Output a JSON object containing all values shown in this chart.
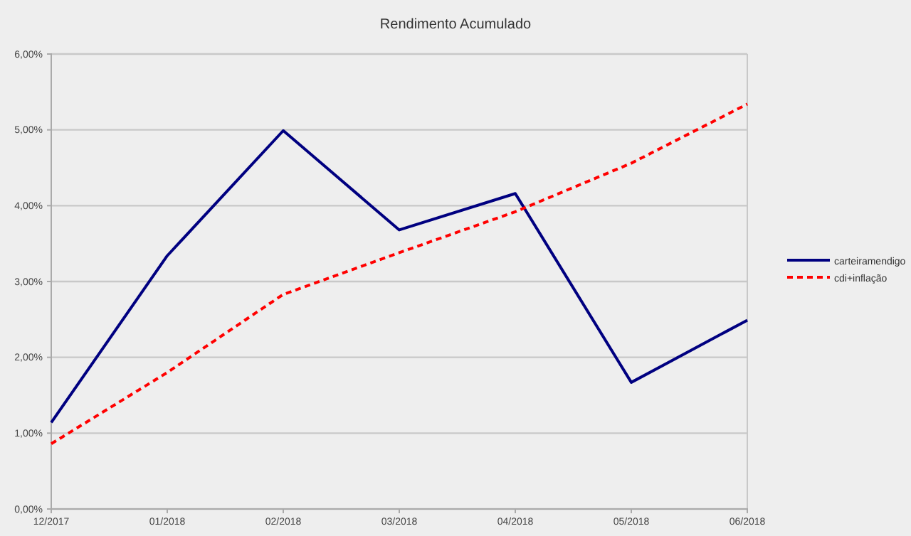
{
  "chart_data": {
    "type": "line",
    "title": "Rendimento Acumulado",
    "categories": [
      "12/2017",
      "01/2018",
      "02/2018",
      "03/2018",
      "04/2018",
      "05/2018",
      "06/2018"
    ],
    "series": [
      {
        "name": "carteiramendigo",
        "color": "#000080",
        "line_style": "solid",
        "values": [
          1.14,
          3.34,
          4.99,
          3.68,
          4.16,
          1.67,
          2.49
        ]
      },
      {
        "name": "cdi+inflação",
        "color": "#ff0000",
        "line_style": "dashed",
        "values": [
          0.86,
          1.8,
          2.83,
          3.38,
          3.92,
          4.56,
          5.34
        ]
      }
    ],
    "ylim": [
      0,
      6
    ],
    "yticks": [
      {
        "value": 0,
        "label": "0,00%"
      },
      {
        "value": 1,
        "label": "1,00%"
      },
      {
        "value": 2,
        "label": "2,00%"
      },
      {
        "value": 3,
        "label": "3,00%"
      },
      {
        "value": 4,
        "label": "4,00%"
      },
      {
        "value": 5,
        "label": "5,00%"
      },
      {
        "value": 6,
        "label": "6,00%"
      }
    ],
    "grid": "y",
    "legend": "right",
    "marker": "none"
  }
}
